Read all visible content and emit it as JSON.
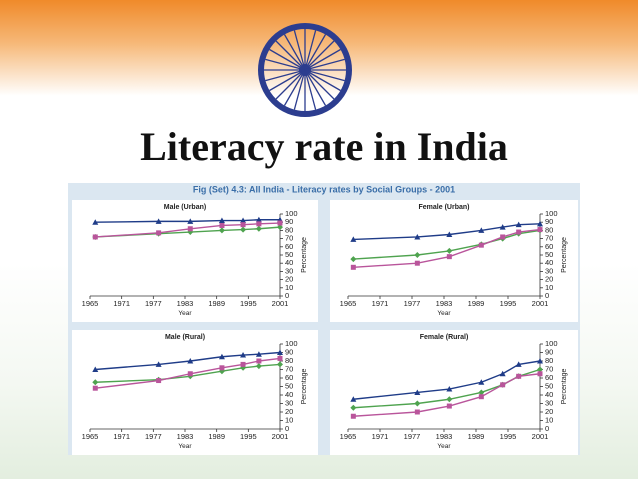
{
  "slide": {
    "title": "Literacy rate in India",
    "figure_title": "Fig (Set) 4.3: All India - Literacy rates by Social Groups - 2001"
  },
  "chart_data": [
    {
      "type": "line",
      "title": "Male (Urban)",
      "x_label": "Year",
      "y_label": "Percentage",
      "x": [
        1966,
        1978,
        1984,
        1990,
        1994,
        1997,
        2001
      ],
      "series": [
        {
          "color": "#1f3c88",
          "values": [
            90,
            91,
            91,
            92,
            92,
            93,
            93
          ]
        },
        {
          "color": "#4fa34f",
          "values": [
            72,
            76,
            78,
            80,
            81,
            82,
            84
          ]
        },
        {
          "color": "#b9559b",
          "values": [
            72,
            77,
            82,
            86,
            87,
            88,
            89
          ]
        }
      ],
      "xlim": [
        1965,
        2001
      ],
      "xticks": [
        1965,
        1971,
        1977,
        1983,
        1989,
        1995,
        2001
      ],
      "ylim": [
        0,
        100
      ],
      "yticks": [
        0,
        10,
        20,
        30,
        40,
        50,
        60,
        70,
        80,
        90,
        100
      ]
    },
    {
      "type": "line",
      "title": "Female (Urban)",
      "x_label": "Year",
      "y_label": "Percentage",
      "x": [
        1966,
        1978,
        1984,
        1990,
        1994,
        1997,
        2001
      ],
      "series": [
        {
          "color": "#1f3c88",
          "values": [
            69,
            72,
            75,
            80,
            84,
            87,
            88
          ]
        },
        {
          "color": "#4fa34f",
          "values": [
            45,
            50,
            55,
            63,
            70,
            76,
            80
          ]
        },
        {
          "color": "#b9559b",
          "values": [
            35,
            40,
            48,
            62,
            72,
            78,
            81
          ]
        }
      ],
      "xlim": [
        1965,
        2001
      ],
      "xticks": [
        1965,
        1971,
        1977,
        1983,
        1989,
        1995,
        2001
      ],
      "ylim": [
        0,
        100
      ],
      "yticks": [
        0,
        10,
        20,
        30,
        40,
        50,
        60,
        70,
        80,
        90,
        100
      ]
    },
    {
      "type": "line",
      "title": "Male (Rural)",
      "x_label": "Year",
      "y_label": "Percentage",
      "x": [
        1966,
        1978,
        1984,
        1990,
        1994,
        1997,
        2001
      ],
      "series": [
        {
          "color": "#1f3c88",
          "values": [
            70,
            76,
            80,
            85,
            87,
            88,
            90
          ]
        },
        {
          "color": "#4fa34f",
          "values": [
            55,
            58,
            62,
            68,
            72,
            74,
            76
          ]
        },
        {
          "color": "#b9559b",
          "values": [
            48,
            57,
            65,
            72,
            76,
            80,
            83
          ]
        }
      ],
      "xlim": [
        1965,
        2001
      ],
      "xticks": [
        1965,
        1971,
        1977,
        1983,
        1989,
        1995,
        2001
      ],
      "ylim": [
        0,
        100
      ],
      "yticks": [
        0,
        10,
        20,
        30,
        40,
        50,
        60,
        70,
        80,
        90,
        100
      ]
    },
    {
      "type": "line",
      "title": "Female (Rural)",
      "x_label": "Year",
      "y_label": "Percentage",
      "x": [
        1966,
        1978,
        1984,
        1990,
        1994,
        1997,
        2001
      ],
      "series": [
        {
          "color": "#1f3c88",
          "values": [
            35,
            43,
            47,
            55,
            65,
            76,
            80
          ]
        },
        {
          "color": "#4fa34f",
          "values": [
            25,
            30,
            35,
            43,
            52,
            62,
            70
          ]
        },
        {
          "color": "#b9559b",
          "values": [
            15,
            20,
            27,
            38,
            52,
            62,
            65
          ]
        }
      ],
      "xlim": [
        1965,
        2001
      ],
      "xticks": [
        1965,
        1971,
        1977,
        1983,
        1989,
        1995,
        2001
      ],
      "ylim": [
        0,
        100
      ],
      "yticks": [
        0,
        10,
        20,
        30,
        40,
        50,
        60,
        70,
        80,
        90,
        100
      ]
    }
  ]
}
